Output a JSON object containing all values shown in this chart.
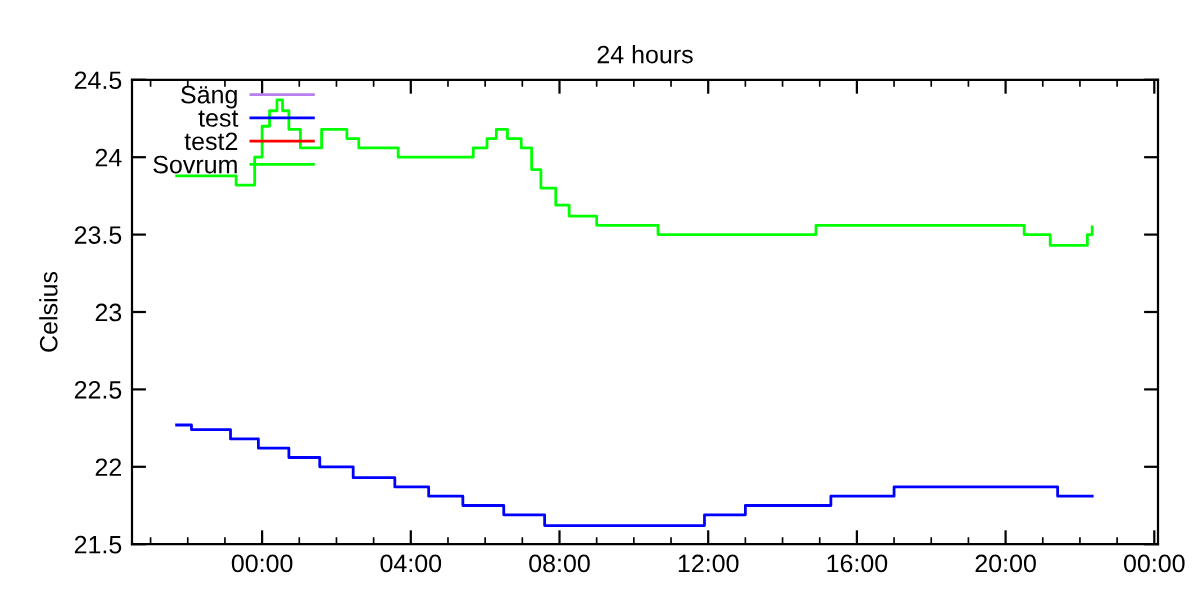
{
  "chart_data": {
    "type": "step",
    "title": "24 hours",
    "ylabel": "Celsius",
    "xlim": [
      -3.5,
      24.1
    ],
    "xticks": [
      {
        "value": 0,
        "label": "00:00"
      },
      {
        "value": 4,
        "label": "04:00"
      },
      {
        "value": 8,
        "label": "08:00"
      },
      {
        "value": 12,
        "label": "12:00"
      },
      {
        "value": 16,
        "label": "16:00"
      },
      {
        "value": 20,
        "label": "20:00"
      },
      {
        "value": 24,
        "label": "00:00"
      }
    ],
    "ylim": [
      21.5,
      24.5
    ],
    "yticks": [
      21.5,
      22,
      22.5,
      23,
      23.5,
      24,
      24.5
    ],
    "grid": false,
    "legend": "top left",
    "series": [
      {
        "name": "Säng",
        "color": "#b77fef"
      },
      {
        "name": "test",
        "color": "#0000ff",
        "x": [
          -2.3,
          -1.9,
          -0.85,
          -0.1,
          0.72,
          1.55,
          2.45,
          3.57,
          4.48,
          5.4,
          6.5,
          7.6,
          10.56,
          11.9,
          13.0,
          15.3,
          17.0,
          20.7,
          21.4,
          22.33
        ],
        "values": [
          22.27,
          22.24,
          22.18,
          22.12,
          22.06,
          22.0,
          21.93,
          21.87,
          21.81,
          21.75,
          21.69,
          21.62,
          21.62,
          21.69,
          21.75,
          21.81,
          21.87,
          21.87,
          21.81,
          21.81
        ]
      },
      {
        "name": "test2",
        "color": "#ff0000"
      },
      {
        "name": "Sovrum",
        "color": "#00ff00",
        "x": [
          -2.3,
          -0.7,
          -0.26,
          -0.2,
          0.0,
          0.2,
          0.4,
          0.55,
          0.72,
          1.03,
          1.6,
          2.28,
          2.6,
          3.66,
          5.68,
          6.05,
          6.3,
          6.6,
          6.97,
          7.25,
          7.5,
          7.9,
          8.26,
          9.0,
          10.65,
          14.9,
          20.5,
          21.2,
          22.2,
          22.33
        ],
        "values": [
          23.88,
          23.82,
          23.82,
          24.0,
          24.2,
          24.3,
          24.37,
          24.3,
          24.18,
          24.06,
          24.18,
          24.12,
          24.06,
          24.0,
          24.06,
          24.12,
          24.18,
          24.12,
          24.06,
          23.92,
          23.8,
          23.69,
          23.62,
          23.56,
          23.5,
          23.56,
          23.5,
          23.43,
          23.5,
          23.55
        ]
      }
    ]
  }
}
